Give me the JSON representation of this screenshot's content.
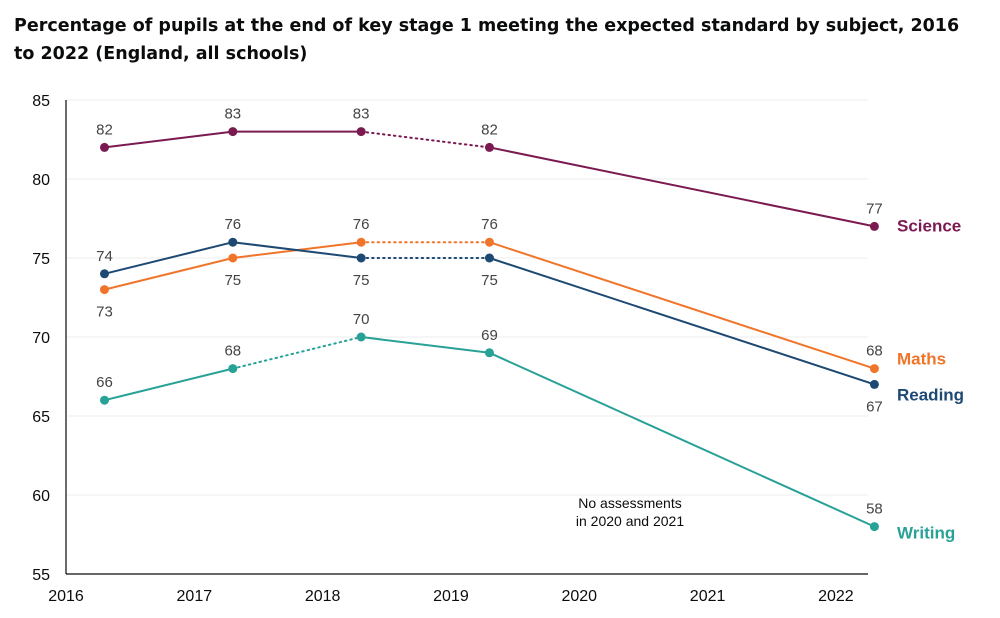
{
  "chart_data": {
    "type": "line",
    "title": "Percentage of pupils at the end of key stage 1 meeting the expected standard by subject, 2016 to 2022 (England, all schools)",
    "x_ticks": [
      "2016",
      "2017",
      "2018",
      "2019",
      "2020",
      "2021",
      "2022"
    ],
    "y_ticks": [
      "55",
      "60",
      "65",
      "70",
      "75",
      "80",
      "85"
    ],
    "ylim": [
      55,
      85
    ],
    "xlim": [
      2016,
      2022.25
    ],
    "x": [
      2016.3,
      2017.3,
      2018.3,
      2019.3,
      2022.3
    ],
    "annotation": "No assessments in 2020 and 2021",
    "annotation_lines": [
      "No assessments",
      "in 2020 and 2021"
    ],
    "grid": "horizontal",
    "series": [
      {
        "name": "Science",
        "color": "#7b1a51",
        "values": [
          82,
          83,
          83,
          82,
          77
        ],
        "labels": [
          "82",
          "83",
          "83",
          "82",
          "77"
        ],
        "dotted_segments": [
          2
        ],
        "label_side": [
          "above",
          "above",
          "above",
          "above",
          "above"
        ]
      },
      {
        "name": "Maths",
        "color": "#f0752b",
        "values": [
          73,
          75,
          76,
          76,
          68
        ],
        "labels": [
          "73",
          "75",
          "76",
          "76",
          "68"
        ],
        "dotted_segments": [
          2
        ],
        "label_side": [
          "below",
          "below",
          "above",
          "above",
          "above"
        ]
      },
      {
        "name": "Reading",
        "color": "#1d4972",
        "values": [
          74,
          76,
          75,
          75,
          67
        ],
        "labels": [
          "74",
          "76",
          "75",
          "75",
          "67"
        ],
        "dotted_segments": [
          2
        ],
        "label_side": [
          "above",
          "above",
          "below",
          "below",
          "below"
        ]
      },
      {
        "name": "Writing",
        "color": "#28a197",
        "values": [
          66,
          68,
          70,
          69,
          58
        ],
        "labels": [
          "66",
          "68",
          "70",
          "69",
          "58"
        ],
        "dotted_segments": [
          1
        ],
        "label_side": [
          "above",
          "above",
          "above",
          "above",
          "above"
        ]
      }
    ]
  }
}
